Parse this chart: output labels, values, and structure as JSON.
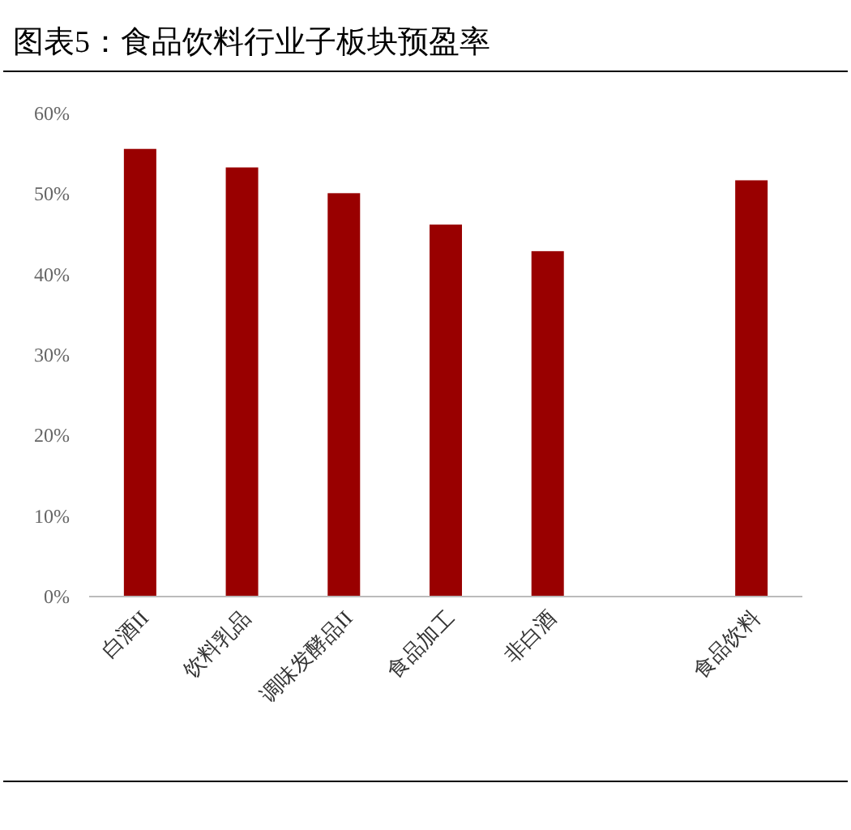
{
  "chart_data": {
    "type": "bar",
    "title": "图表5：食品饮料行业子板块预盈率",
    "categories": [
      "白酒II",
      "饮料乳品",
      "调味发酵品II",
      "食品加工",
      "非白酒",
      null,
      "食品饮料"
    ],
    "values": [
      55.6,
      53.3,
      50.1,
      46.2,
      42.9,
      null,
      51.7
    ],
    "color": "#990000",
    "ylim": [
      0,
      60
    ],
    "yticks": [
      {
        "value": 0,
        "label": "0%"
      },
      {
        "value": 10,
        "label": "10%"
      },
      {
        "value": 20,
        "label": "20%"
      },
      {
        "value": 30,
        "label": "30%"
      },
      {
        "value": 40,
        "label": "40%"
      },
      {
        "value": 50,
        "label": "50%"
      },
      {
        "value": 60,
        "label": "60%"
      }
    ]
  }
}
